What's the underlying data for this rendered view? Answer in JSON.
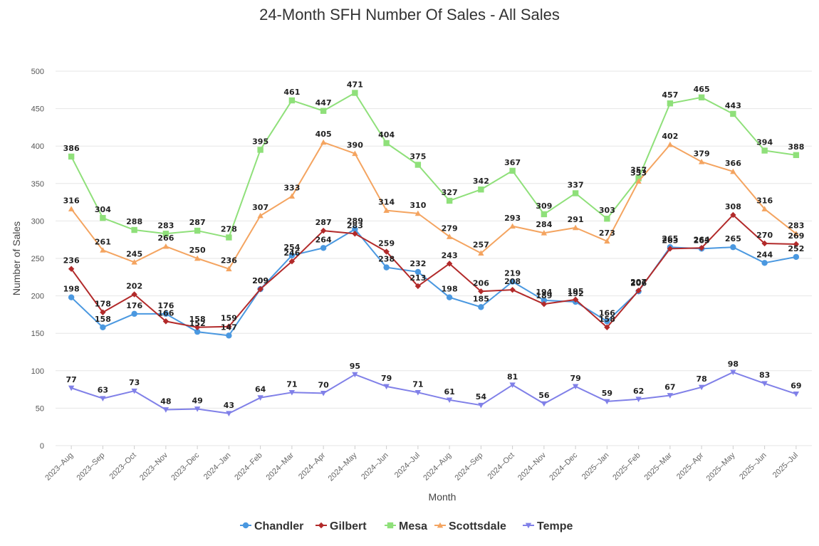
{
  "chart_data": {
    "type": "line",
    "title": "24-Month SFH Number Of Sales - All Sales",
    "xlabel": "Month",
    "ylabel": "Number of Sales",
    "ylim": [
      0,
      500
    ],
    "yticks": [
      0,
      50,
      100,
      150,
      200,
      250,
      300,
      350,
      400,
      450,
      500
    ],
    "grid": true,
    "legend_position": "bottom",
    "categories": [
      "2023–Aug",
      "2023–Sep",
      "2023–Oct",
      "2023–Nov",
      "2023–Dec",
      "2024–Jan",
      "2024–Feb",
      "2024–Mar",
      "2024–Apr",
      "2024–May",
      "2024–Jun",
      "2024–Jul",
      "2024–Aug",
      "2024–Sep",
      "2024–Oct",
      "2024–Nov",
      "2024–Dec",
      "2025–Jan",
      "2025–Feb",
      "2025–Mar",
      "2025–Apr",
      "2025–May",
      "2025–Jun",
      "2025–Jul"
    ],
    "series": [
      {
        "name": "Chandler",
        "color": "#4a98e0",
        "marker": "circle",
        "values": [
          198,
          158,
          176,
          176,
          152,
          147,
          209,
          254,
          264,
          289,
          238,
          232,
          198,
          185,
          219,
          194,
          192,
          166,
          206,
          265,
          263,
          265,
          244,
          252
        ]
      },
      {
        "name": "Gilbert",
        "color": "#b22a2a",
        "marker": "diamond",
        "values": [
          236,
          178,
          202,
          166,
          158,
          159,
          209,
          246,
          287,
          283,
          259,
          213,
          243,
          206,
          208,
          189,
          195,
          158,
          207,
          263,
          264,
          308,
          270,
          269
        ]
      },
      {
        "name": "Mesa",
        "color": "#8fe07a",
        "marker": "square",
        "values": [
          386,
          304,
          288,
          283,
          287,
          278,
          395,
          461,
          447,
          471,
          404,
          375,
          327,
          342,
          367,
          309,
          337,
          303,
          357,
          457,
          465,
          443,
          394,
          388
        ]
      },
      {
        "name": "Scottsdale",
        "color": "#f4a460",
        "marker": "triangle-up",
        "values": [
          316,
          261,
          245,
          266,
          250,
          236,
          307,
          333,
          405,
          390,
          314,
          310,
          279,
          257,
          293,
          284,
          291,
          273,
          353,
          402,
          379,
          366,
          316,
          283
        ]
      },
      {
        "name": "Tempe",
        "color": "#8080e8",
        "marker": "triangle-down",
        "values": [
          77,
          63,
          73,
          48,
          49,
          43,
          64,
          71,
          70,
          95,
          79,
          71,
          61,
          54,
          81,
          56,
          79,
          59,
          62,
          67,
          78,
          98,
          83,
          69
        ]
      }
    ]
  }
}
